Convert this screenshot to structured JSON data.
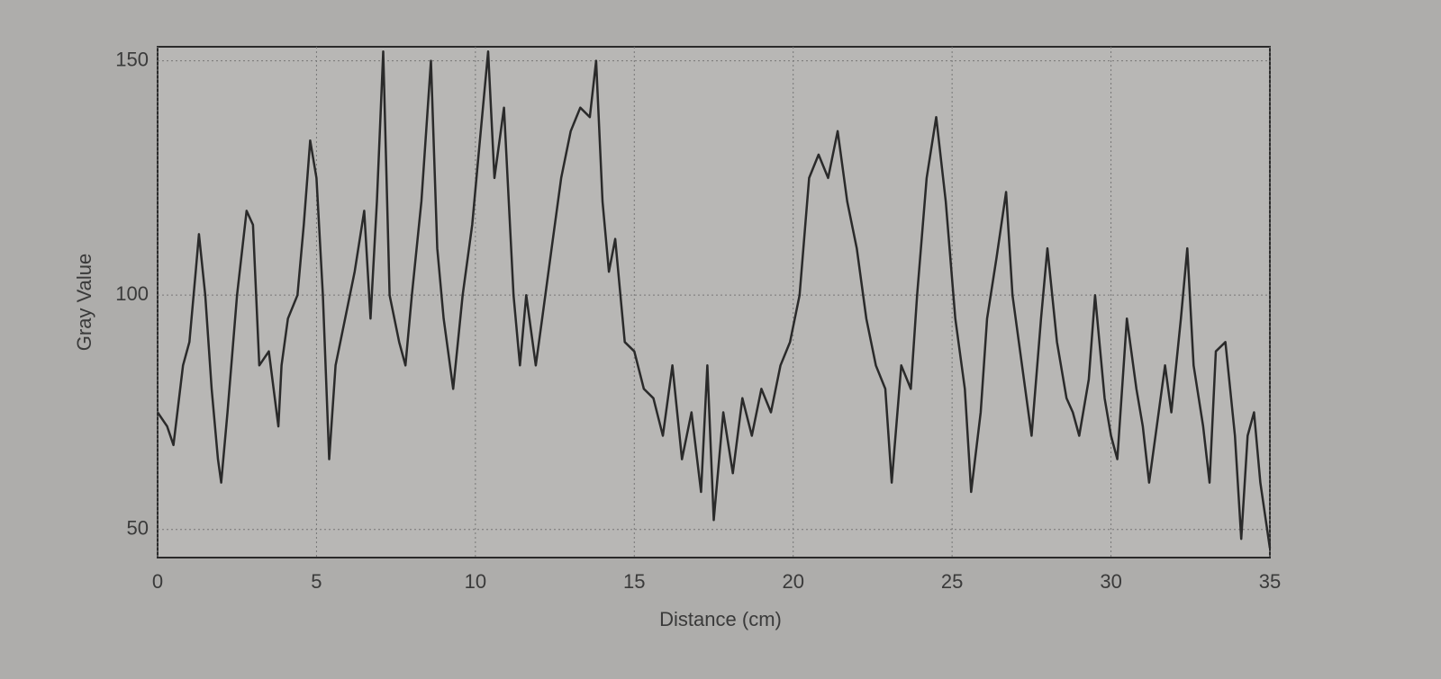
{
  "chart_data": {
    "type": "line",
    "x_label": "Distance (cm)",
    "y_label": "Gray Value",
    "xlim": [
      0,
      35
    ],
    "ylim": [
      44,
      153
    ],
    "xticks": [
      0,
      5,
      10,
      15,
      20,
      25,
      30,
      35
    ],
    "yticks": [
      50,
      100,
      150
    ],
    "grid": true,
    "series": [
      {
        "color": "#2a2a2a",
        "x": [
          0,
          0.3,
          0.5,
          0.8,
          1.0,
          1.2,
          1.3,
          1.5,
          1.7,
          1.9,
          2.0,
          2.2,
          2.5,
          2.8,
          3.0,
          3.2,
          3.5,
          3.8,
          3.9,
          4.1,
          4.4,
          4.6,
          4.8,
          5.0,
          5.2,
          5.4,
          5.6,
          5.9,
          6.2,
          6.5,
          6.7,
          6.9,
          7.1,
          7.3,
          7.6,
          7.8,
          8.0,
          8.3,
          8.6,
          8.8,
          9.0,
          9.3,
          9.6,
          9.9,
          10.1,
          10.4,
          10.6,
          10.9,
          11.2,
          11.4,
          11.6,
          11.9,
          12.1,
          12.4,
          12.7,
          13.0,
          13.3,
          13.6,
          13.8,
          14.0,
          14.2,
          14.4,
          14.7,
          15.0,
          15.3,
          15.6,
          15.9,
          16.2,
          16.5,
          16.8,
          17.1,
          17.3,
          17.5,
          17.8,
          18.1,
          18.4,
          18.7,
          19.0,
          19.3,
          19.6,
          19.9,
          20.2,
          20.5,
          20.8,
          21.1,
          21.4,
          21.7,
          22.0,
          22.3,
          22.6,
          22.9,
          23.1,
          23.4,
          23.7,
          23.9,
          24.2,
          24.5,
          24.8,
          25.1,
          25.4,
          25.6,
          25.9,
          26.1,
          26.4,
          26.7,
          26.9,
          27.2,
          27.5,
          27.8,
          28.0,
          28.3,
          28.6,
          28.8,
          29.0,
          29.3,
          29.5,
          29.8,
          30.0,
          30.2,
          30.5,
          30.8,
          31.0,
          31.2,
          31.4,
          31.7,
          31.9,
          32.2,
          32.4,
          32.6,
          32.9,
          33.1,
          33.3,
          33.6,
          33.9,
          34.1,
          34.3,
          34.5,
          34.7,
          35.0
        ],
        "values": [
          75,
          72,
          68,
          85,
          90,
          105,
          113,
          100,
          80,
          65,
          60,
          75,
          100,
          118,
          115,
          85,
          88,
          72,
          85,
          95,
          100,
          115,
          133,
          125,
          100,
          65,
          85,
          95,
          105,
          118,
          95,
          120,
          152,
          100,
          90,
          85,
          100,
          120,
          150,
          110,
          95,
          80,
          100,
          115,
          130,
          152,
          125,
          140,
          100,
          85,
          100,
          85,
          95,
          110,
          125,
          135,
          140,
          138,
          150,
          120,
          105,
          112,
          90,
          88,
          80,
          78,
          70,
          85,
          65,
          75,
          58,
          85,
          52,
          75,
          62,
          78,
          70,
          80,
          75,
          85,
          90,
          100,
          125,
          130,
          125,
          135,
          120,
          110,
          95,
          85,
          80,
          60,
          85,
          80,
          100,
          125,
          138,
          120,
          95,
          80,
          58,
          75,
          95,
          108,
          122,
          100,
          85,
          70,
          95,
          110,
          90,
          78,
          75,
          70,
          82,
          100,
          78,
          70,
          65,
          95,
          80,
          72,
          60,
          70,
          85,
          75,
          95,
          110,
          85,
          72,
          60,
          88,
          90,
          70,
          48,
          70,
          75,
          60,
          46
        ]
      }
    ]
  }
}
